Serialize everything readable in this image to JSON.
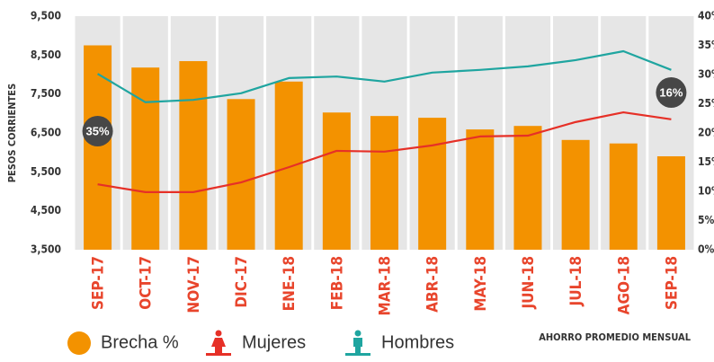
{
  "chart_data": {
    "type": "bar",
    "y_label": "PESOS CORRIENTES",
    "footer": "AHORRO PROMEDIO MENSUAL",
    "categories": [
      "SEP-17",
      "OCT-17",
      "NOV-17",
      "DIC-17",
      "ENE-18",
      "FEB-18",
      "MAR-18",
      "ABR-18",
      "MAY-18",
      "JUN-18",
      "JUL-18",
      "AGO-18",
      "SEP-18"
    ],
    "series": [
      {
        "name": "Brecha %",
        "type": "bar",
        "axis": "y2",
        "color": "#f39200",
        "values": [
          35,
          31.2,
          32.3,
          25.8,
          28.8,
          23.5,
          22.9,
          22.6,
          20.6,
          21.2,
          18.8,
          18.2,
          16
        ],
        "value_labels": [
          "35%",
          null,
          null,
          null,
          null,
          null,
          null,
          null,
          null,
          null,
          null,
          null,
          "16%"
        ]
      },
      {
        "name": "Mujeres",
        "type": "line",
        "axis": "y",
        "color": "#e63027",
        "values": [
          5180,
          4980,
          4980,
          5230,
          5620,
          6040,
          6020,
          6180,
          6410,
          6430,
          6780,
          7030,
          6850
        ]
      },
      {
        "name": "Hombres",
        "type": "line",
        "axis": "y",
        "color": "#1fa5a0",
        "values": [
          8020,
          7290,
          7350,
          7520,
          7910,
          7950,
          7820,
          8050,
          8120,
          8210,
          8370,
          8600,
          8120
        ]
      }
    ],
    "ylim": [
      3500,
      9500
    ],
    "yticks": [
      {
        "value": 3500,
        "label": "3,500"
      },
      {
        "value": 4500,
        "label": "4,500"
      },
      {
        "value": 5500,
        "label": "5,500"
      },
      {
        "value": 6500,
        "label": "6,500"
      },
      {
        "value": 7500,
        "label": "7,500"
      },
      {
        "value": 8500,
        "label": "8,500"
      },
      {
        "value": 9500,
        "label": "9,500"
      }
    ],
    "y2lim": [
      0,
      40
    ],
    "y2ticks": [
      {
        "value": 0,
        "label": "0%"
      },
      {
        "value": 5,
        "label": "5%"
      },
      {
        "value": 10,
        "label": "10%"
      },
      {
        "value": 15,
        "label": "15%"
      },
      {
        "value": 20,
        "label": "20%"
      },
      {
        "value": 25,
        "label": "25%"
      },
      {
        "value": 30,
        "label": "30%"
      },
      {
        "value": 35,
        "label": "35%"
      },
      {
        "value": 40,
        "label": "40%"
      }
    ],
    "grid": false
  }
}
